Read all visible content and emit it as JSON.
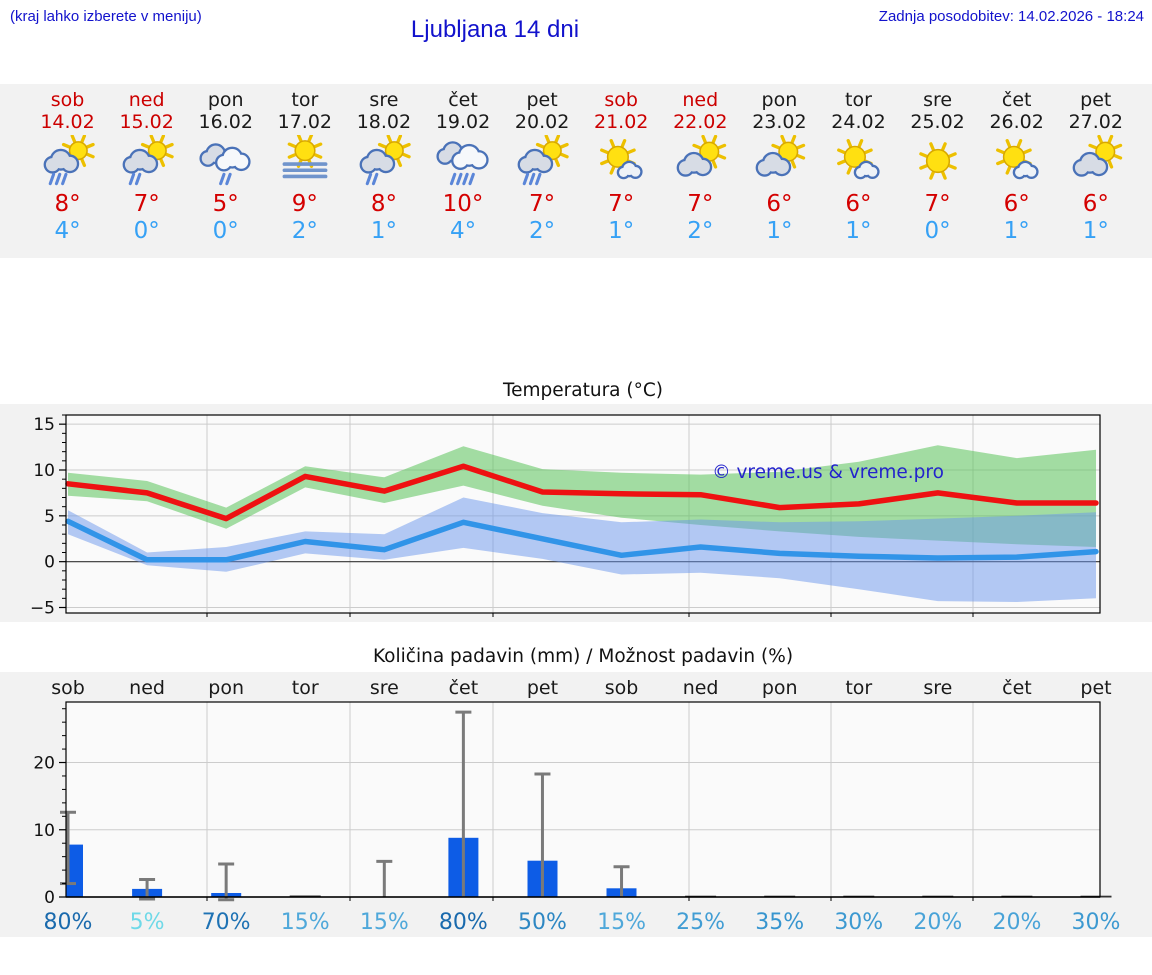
{
  "header": {
    "hint": "(kraj lahko izberete v meniju)",
    "title": "Ljubljana 14 dni",
    "last_update": "Zadnja posodobitev: 14.02.2026 - 18:24"
  },
  "colors": {
    "header_blue": "#1212cc",
    "weekend_red": "#cc0000",
    "weekday_black": "#1a1a1a",
    "tmax_red": "#d40000",
    "tmin_blue": "#36a1f5",
    "bar_blue": "#0d5ce6",
    "line_red": "#ee1111",
    "line_blue": "#3194e8",
    "band_green": "rgba(90,195,90,0.55)",
    "band_blue": "rgba(105,150,235,0.5)",
    "watermark_blue": "#2323cc",
    "whisker_gray": "#7a7a7a"
  },
  "days": {
    "items": [
      {
        "name": "sob",
        "date": "14.02",
        "weekend": true,
        "icon": "sun-cloud-heavy-rain",
        "tmax": "8°",
        "tmin": "4°"
      },
      {
        "name": "ned",
        "date": "15.02",
        "weekend": true,
        "icon": "sun-cloud-light-rain",
        "tmax": "7°",
        "tmin": "0°"
      },
      {
        "name": "pon",
        "date": "16.02",
        "weekend": false,
        "icon": "clouds-light-rain",
        "tmax": "5°",
        "tmin": "0°"
      },
      {
        "name": "tor",
        "date": "17.02",
        "weekend": false,
        "icon": "sun-fog",
        "tmax": "9°",
        "tmin": "2°"
      },
      {
        "name": "sre",
        "date": "18.02",
        "weekend": false,
        "icon": "sun-cloud-light-rain",
        "tmax": "8°",
        "tmin": "1°"
      },
      {
        "name": "čet",
        "date": "19.02",
        "weekend": false,
        "icon": "clouds-heavy-rain",
        "tmax": "10°",
        "tmin": "4°"
      },
      {
        "name": "pet",
        "date": "20.02",
        "weekend": false,
        "icon": "sun-cloud-heavy-rain",
        "tmax": "7°",
        "tmin": "2°"
      },
      {
        "name": "sob",
        "date": "21.02",
        "weekend": true,
        "icon": "sun-small-cloud",
        "tmax": "7°",
        "tmin": "1°"
      },
      {
        "name": "ned",
        "date": "22.02",
        "weekend": true,
        "icon": "sun-cloud",
        "tmax": "7°",
        "tmin": "2°"
      },
      {
        "name": "pon",
        "date": "23.02",
        "weekend": false,
        "icon": "sun-cloud",
        "tmax": "6°",
        "tmin": "1°"
      },
      {
        "name": "tor",
        "date": "24.02",
        "weekend": false,
        "icon": "sun-small-cloud",
        "tmax": "6°",
        "tmin": "1°"
      },
      {
        "name": "sre",
        "date": "25.02",
        "weekend": false,
        "icon": "sun",
        "tmax": "7°",
        "tmin": "0°"
      },
      {
        "name": "čet",
        "date": "26.02",
        "weekend": false,
        "icon": "sun-small-cloud",
        "tmax": "6°",
        "tmin": "1°"
      },
      {
        "name": "pet",
        "date": "27.02",
        "weekend": false,
        "icon": "sun-cloud",
        "tmax": "6°",
        "tmin": "1°"
      }
    ]
  },
  "chart_data": [
    {
      "type": "line",
      "title": "Temperatura (°C)",
      "x_categories": [
        "sob",
        "ned",
        "pon",
        "tor",
        "sre",
        "čet",
        "pet",
        "sob",
        "ned",
        "pon",
        "tor",
        "sre",
        "čet",
        "pet"
      ],
      "ylim": [
        -5.6,
        16
      ],
      "yticks": [
        {
          "v": 15,
          "label": "15"
        },
        {
          "v": 10,
          "label": "10"
        },
        {
          "v": 5,
          "label": "5"
        },
        {
          "v": 0,
          "label": "0"
        },
        {
          "v": -5,
          "label": "−5"
        }
      ],
      "grid": true,
      "watermark": "© vreme.us & vreme.pro",
      "series": [
        {
          "name": "max-temp",
          "values": [
            8.5,
            7.5,
            4.7,
            9.3,
            7.7,
            10.4,
            7.6,
            7.4,
            7.3,
            5.9,
            6.3,
            7.5,
            6.4,
            6.4
          ]
        },
        {
          "name": "min-temp",
          "values": [
            4.4,
            0.2,
            0.2,
            2.2,
            1.3,
            4.3,
            2.5,
            0.7,
            1.6,
            0.9,
            0.6,
            0.4,
            0.5,
            1.1
          ]
        }
      ],
      "bands": [
        {
          "name": "max-temp-range",
          "hi": [
            9.7,
            8.8,
            5.9,
            10.4,
            9.2,
            12.6,
            10.1,
            9.7,
            9.5,
            9.8,
            10.9,
            12.7,
            11.3,
            12.2
          ],
          "lo": [
            7.2,
            6.6,
            3.6,
            8.1,
            6.4,
            8.3,
            6.1,
            4.8,
            4.0,
            3.3,
            2.7,
            2.3,
            1.9,
            1.6
          ]
        },
        {
          "name": "min-temp-range",
          "hi": [
            5.6,
            1.0,
            1.6,
            3.3,
            3.0,
            7.0,
            5.3,
            4.3,
            4.6,
            4.3,
            4.4,
            4.7,
            5.0,
            5.4
          ],
          "lo": [
            3.0,
            -0.4,
            -1.1,
            0.9,
            0.2,
            1.5,
            0.3,
            -1.4,
            -1.2,
            -1.8,
            -3.0,
            -4.3,
            -4.4,
            -4.0
          ]
        }
      ]
    },
    {
      "type": "bar",
      "title": "Količina padavin (mm) / Možnost padavin (%)",
      "day_labels": [
        "sob",
        "ned",
        "pon",
        "tor",
        "sre",
        "čet",
        "pet",
        "sob",
        "ned",
        "pon",
        "tor",
        "sre",
        "čet",
        "pet"
      ],
      "ylim": [
        0,
        29
      ],
      "yticks": [
        {
          "v": 20,
          "label": "20"
        },
        {
          "v": 10,
          "label": "10"
        },
        {
          "v": 0,
          "label": "0"
        }
      ],
      "grid": true,
      "values": [
        7.8,
        1.2,
        0.6,
        0.15,
        0,
        8.8,
        5.4,
        1.3,
        0.12,
        0.12,
        0.12,
        0.12,
        0.12,
        0.12
      ],
      "whiskers": [
        [
          2.0,
          12.6
        ],
        [
          -0.3,
          2.6
        ],
        [
          -0.4,
          4.9
        ],
        null,
        [
          0,
          5.3
        ],
        [
          0,
          27.5
        ],
        [
          0,
          18.3
        ],
        [
          0,
          4.5
        ],
        null,
        null,
        null,
        null,
        null,
        null
      ],
      "percents": [
        {
          "label": "80%",
          "color": "#1a6aad"
        },
        {
          "label": "5%",
          "color": "#6fd9e8"
        },
        {
          "label": "70%",
          "color": "#1e72b4"
        },
        {
          "label": "15%",
          "color": "#4fa8da"
        },
        {
          "label": "15%",
          "color": "#4fa8da"
        },
        {
          "label": "80%",
          "color": "#1a6aad"
        },
        {
          "label": "50%",
          "color": "#2d87c3"
        },
        {
          "label": "15%",
          "color": "#4fa8da"
        },
        {
          "label": "25%",
          "color": "#419dd4"
        },
        {
          "label": "35%",
          "color": "#3795cf"
        },
        {
          "label": "30%",
          "color": "#3c99d1"
        },
        {
          "label": "20%",
          "color": "#49a3d8"
        },
        {
          "label": "20%",
          "color": "#49a3d8"
        },
        {
          "label": "30%",
          "color": "#3c99d1"
        }
      ]
    }
  ]
}
